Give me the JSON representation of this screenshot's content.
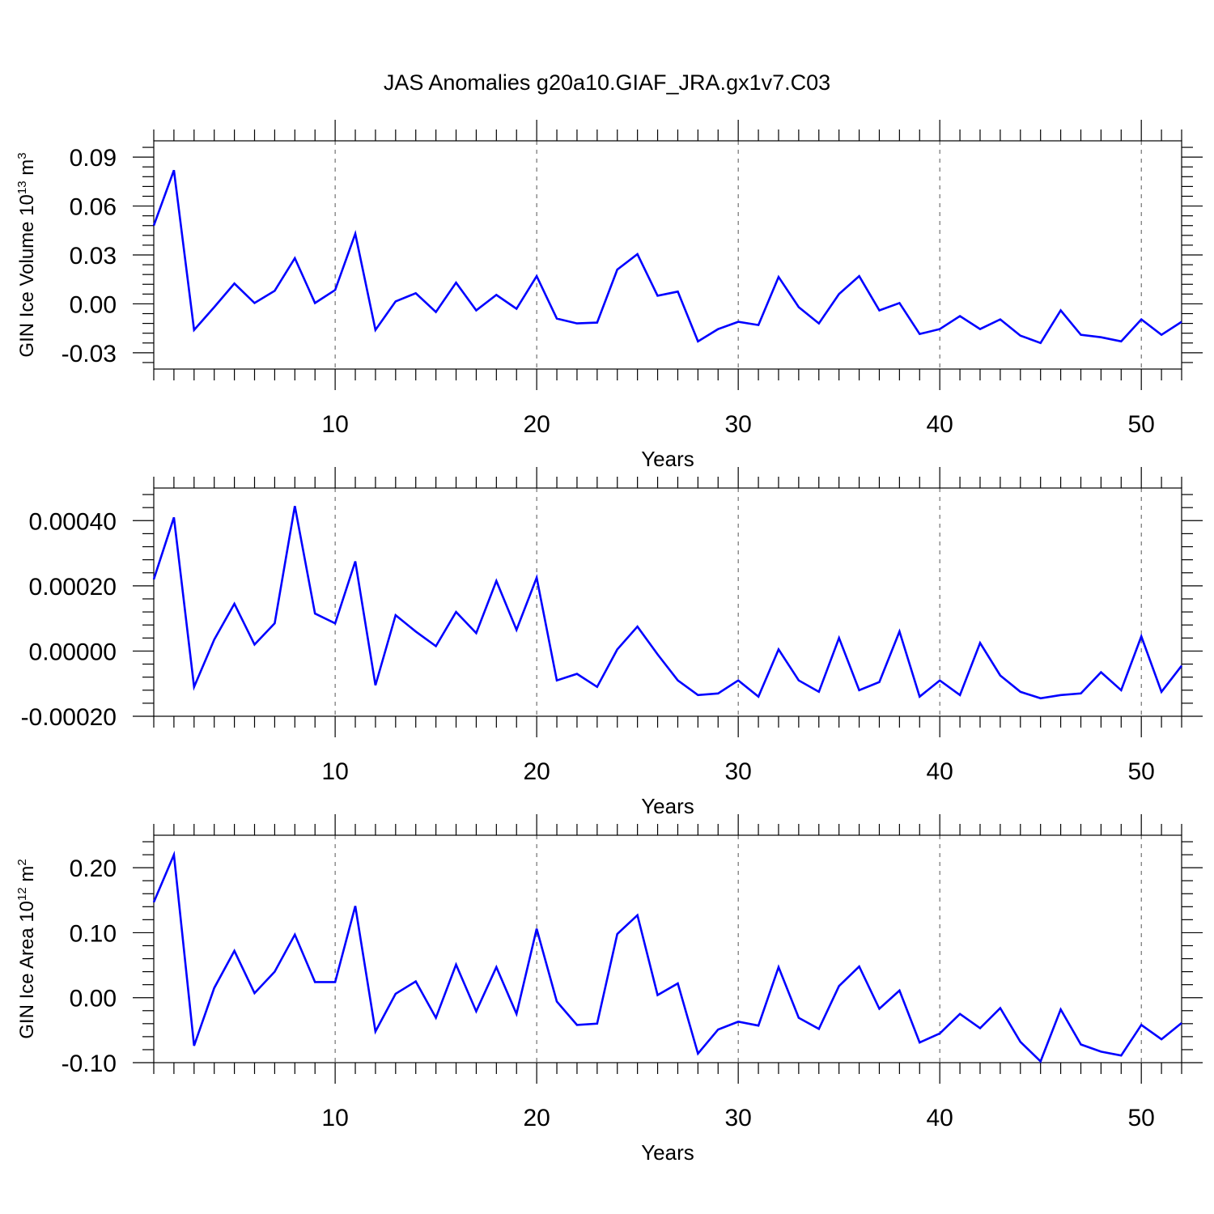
{
  "title": "JAS Anomalies g20a10.GIAF_JRA.gx1v7.C03",
  "chart_data": [
    {
      "type": "line",
      "xlabel": "Years",
      "ylabel": "GIN Ice Volume 10",
      "ylabel_sup": "13",
      "ylabel_unit": " m",
      "ylabel_unit_sup": "3",
      "xlim": [
        1,
        52
      ],
      "ylim": [
        -0.04,
        0.1
      ],
      "xticks": [
        10,
        20,
        30,
        40,
        50
      ],
      "yticks": [
        -0.03,
        0.0,
        0.03,
        0.06,
        0.09
      ],
      "ytick_labels": [
        "-0.03",
        "0.00",
        "0.03",
        "0.06",
        "0.09"
      ],
      "grid_x": true,
      "color": "#0000ff",
      "x": [
        1,
        2,
        3,
        4,
        5,
        6,
        7,
        8,
        9,
        10,
        11,
        12,
        13,
        14,
        15,
        16,
        17,
        18,
        19,
        20,
        21,
        22,
        23,
        24,
        25,
        26,
        27,
        28,
        29,
        30,
        31,
        32,
        33,
        34,
        35,
        36,
        37,
        38,
        39,
        40,
        41,
        42,
        43,
        44,
        45,
        46,
        47,
        48,
        49,
        50,
        51,
        52
      ],
      "values": [
        0.048,
        0.082,
        -0.016,
        -0.002,
        0.0125,
        0.0005,
        0.008,
        0.028,
        0.0005,
        0.0085,
        0.043,
        -0.016,
        0.0015,
        0.0065,
        -0.005,
        0.013,
        -0.004,
        0.0055,
        -0.003,
        0.017,
        -0.009,
        -0.012,
        -0.0115,
        0.021,
        0.0305,
        0.005,
        0.0075,
        -0.023,
        -0.0155,
        -0.011,
        -0.013,
        0.0165,
        -0.002,
        -0.012,
        0.006,
        0.017,
        -0.004,
        0.0005,
        -0.0185,
        -0.0155,
        -0.0075,
        -0.0155,
        -0.0095,
        -0.0195,
        -0.024,
        -0.004,
        -0.019,
        -0.0205,
        -0.023,
        -0.0095,
        -0.019,
        -0.011
      ]
    },
    {
      "type": "line",
      "xlabel": "Years",
      "ylabel": "",
      "xlim": [
        1,
        52
      ],
      "ylim": [
        -0.0002,
        0.0005
      ],
      "xticks": [
        10,
        20,
        30,
        40,
        50
      ],
      "yticks": [
        -0.0002,
        0.0,
        0.0002,
        0.0004
      ],
      "ytick_labels": [
        "-0.00020",
        "0.00000",
        "0.00020",
        "0.00040"
      ],
      "grid_x": true,
      "color": "#0000ff",
      "x": [
        1,
        2,
        3,
        4,
        5,
        6,
        7,
        8,
        9,
        10,
        11,
        12,
        13,
        14,
        15,
        16,
        17,
        18,
        19,
        20,
        21,
        22,
        23,
        24,
        25,
        26,
        27,
        28,
        29,
        30,
        31,
        32,
        33,
        34,
        35,
        36,
        37,
        38,
        39,
        40,
        41,
        42,
        43,
        44,
        45,
        46,
        47,
        48,
        49,
        50,
        51,
        52
      ],
      "values": [
        0.00022,
        0.00041,
        -0.00011,
        3.5e-05,
        0.000145,
        2e-05,
        8.5e-05,
        0.000445,
        0.000115,
        8.5e-05,
        0.000275,
        -0.000105,
        0.00011,
        6e-05,
        1.5e-05,
        0.00012,
        5.5e-05,
        0.000215,
        6.5e-05,
        0.000225,
        -9e-05,
        -7e-05,
        -0.00011,
        5e-06,
        7.5e-05,
        -1e-05,
        -9e-05,
        -0.000135,
        -0.00013,
        -9e-05,
        -0.00014,
        5e-06,
        -9e-05,
        -0.000125,
        4e-05,
        -0.00012,
        -9.5e-05,
        6e-05,
        -0.00014,
        -9e-05,
        -0.000135,
        2.5e-05,
        -7.5e-05,
        -0.000125,
        -0.000145,
        -0.000135,
        -0.00013,
        -6.5e-05,
        -0.00012,
        4.5e-05,
        -0.000125,
        -4.5e-05
      ]
    },
    {
      "type": "line",
      "xlabel": "Years",
      "ylabel": "GIN Ice Area 10",
      "ylabel_sup": "12",
      "ylabel_unit": " m",
      "ylabel_unit_sup": "2",
      "xlim": [
        1,
        52
      ],
      "ylim": [
        -0.1,
        0.25
      ],
      "xticks": [
        10,
        20,
        30,
        40,
        50
      ],
      "yticks": [
        -0.1,
        0.0,
        0.1,
        0.2
      ],
      "ytick_labels": [
        "-0.10",
        "0.00",
        "0.10",
        "0.20"
      ],
      "grid_x": true,
      "color": "#0000ff",
      "x": [
        1,
        2,
        3,
        4,
        5,
        6,
        7,
        8,
        9,
        10,
        11,
        12,
        13,
        14,
        15,
        16,
        17,
        18,
        19,
        20,
        21,
        22,
        23,
        24,
        25,
        26,
        27,
        28,
        29,
        30,
        31,
        32,
        33,
        34,
        35,
        36,
        37,
        38,
        39,
        40,
        41,
        42,
        43,
        44,
        45,
        46,
        47,
        48,
        49,
        50,
        51,
        52
      ],
      "values": [
        0.147,
        0.22,
        -0.074,
        0.015,
        0.072,
        0.007,
        0.04,
        0.097,
        0.024,
        0.024,
        0.141,
        -0.052,
        0.006,
        0.025,
        -0.031,
        0.051,
        -0.021,
        0.047,
        -0.025,
        0.106,
        -0.006,
        -0.042,
        -0.04,
        0.098,
        0.127,
        0.004,
        0.022,
        -0.086,
        -0.049,
        -0.037,
        -0.043,
        0.047,
        -0.031,
        -0.048,
        0.018,
        0.048,
        -0.017,
        0.011,
        -0.069,
        -0.055,
        -0.025,
        -0.047,
        -0.016,
        -0.068,
        -0.098,
        -0.018,
        -0.072,
        -0.083,
        -0.089,
        -0.042,
        -0.064,
        -0.039
      ]
    }
  ]
}
